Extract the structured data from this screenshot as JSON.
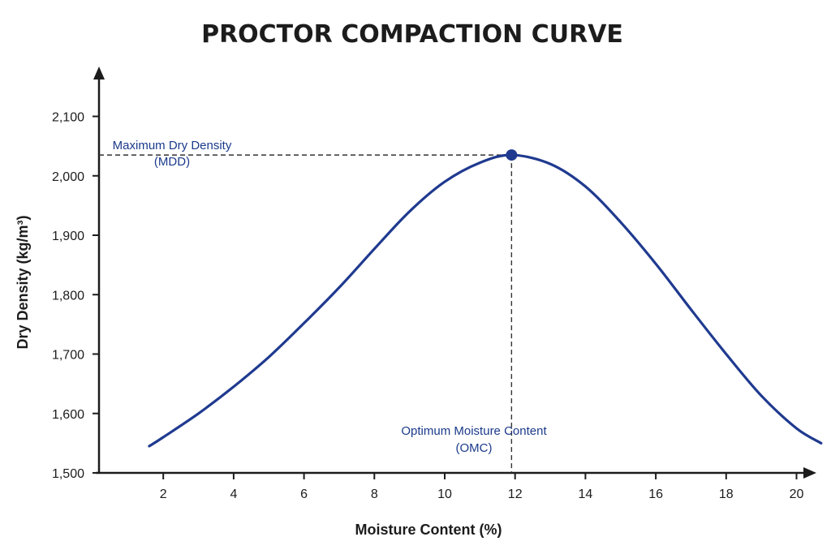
{
  "chart_data": {
    "type": "line",
    "title": "PROCTOR COMPACTION CURVE",
    "xlabel": "Moisture Content (%)",
    "ylabel": "Dry Density (kg/m³)",
    "xlim": [
      1,
      21
    ],
    "ylim": [
      1500,
      2100
    ],
    "x_ticks": [
      "2",
      "4",
      "6",
      "8",
      "10",
      "12",
      "14",
      "16",
      "18",
      "20"
    ],
    "y_ticks": [
      "1,500",
      "1,600",
      "1,700",
      "1,800",
      "1,900",
      "2,000",
      "2,100"
    ],
    "grid": false,
    "series": [
      {
        "x": [
          1.6,
          2,
          3,
          4,
          5,
          6,
          7,
          8,
          9,
          10,
          11,
          11.9,
          13,
          14,
          15,
          16,
          17,
          18,
          19,
          20,
          20.7
        ],
        "y": [
          1545,
          1560,
          1600,
          1645,
          1695,
          1752,
          1812,
          1877,
          1940,
          1990,
          2022,
          2035,
          2020,
          1982,
          1922,
          1852,
          1775,
          1700,
          1630,
          1575,
          1550
        ]
      }
    ],
    "peak": {
      "x": 11.9,
      "y": 2035
    },
    "annotations": {
      "mdd_line1": "Maximum Dry Density",
      "mdd_line2": "(MDD)",
      "omc_line1": "Optimum Moisture Content",
      "omc_line2": "(OMC)"
    },
    "colors": {
      "curve": "#1f3a8f",
      "axis": "#1c1c1c",
      "annotation": "#1a3a8a"
    }
  }
}
